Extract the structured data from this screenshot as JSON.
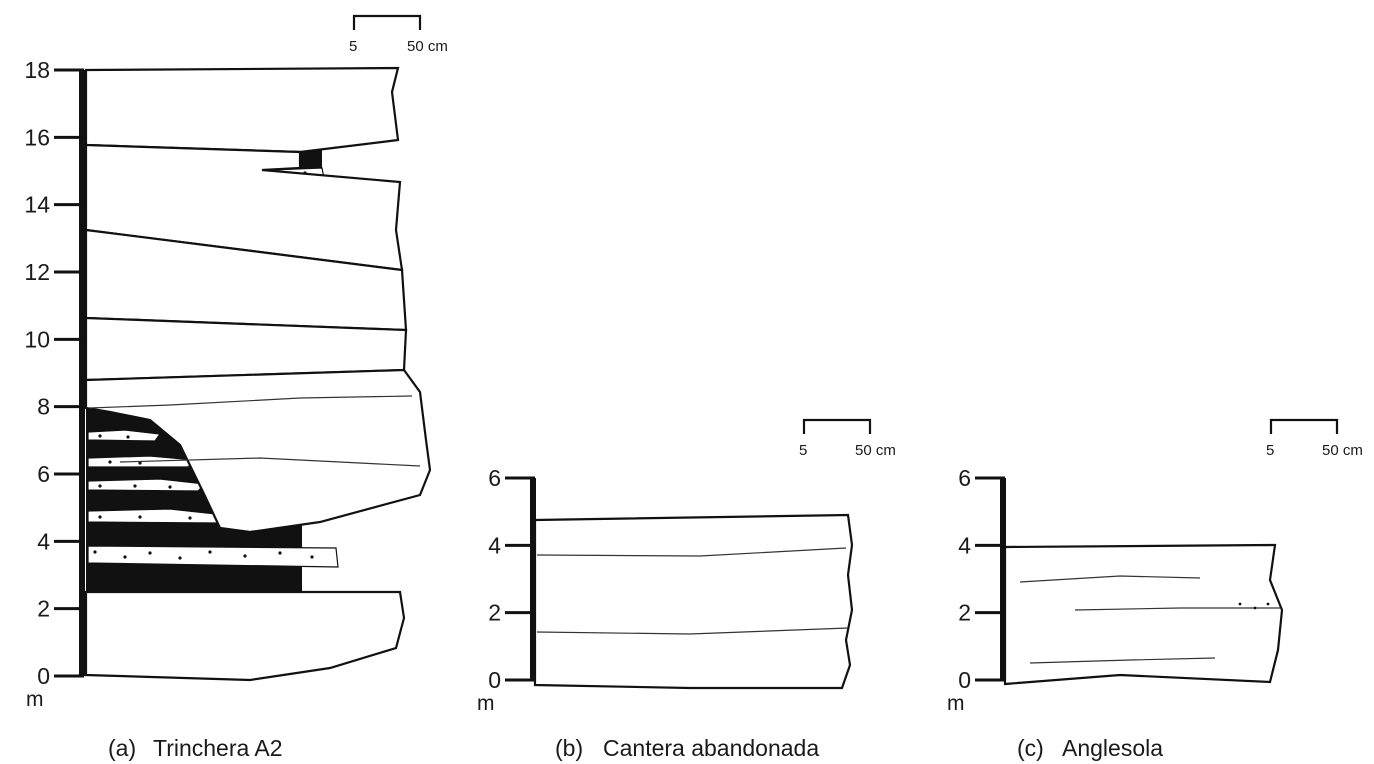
{
  "columns": [
    {
      "id": "a",
      "caption_letter": "(a)",
      "caption_name": "Trinchera A2",
      "ticks": [
        "0",
        "2",
        "4",
        "6",
        "8",
        "10",
        "12",
        "14",
        "16",
        "18"
      ],
      "unit": "m",
      "scale_bar": {
        "left": "5",
        "right": "50 cm"
      }
    },
    {
      "id": "b",
      "caption_letter": "(b)",
      "caption_name": "Cantera abandonada",
      "ticks": [
        "0",
        "2",
        "4",
        "6"
      ],
      "unit": "m",
      "scale_bar": {
        "left": "5",
        "right": "50 cm"
      }
    },
    {
      "id": "c",
      "caption_letter": "(c)",
      "caption_name": "Anglesola",
      "ticks": [
        "0",
        "2",
        "4",
        "6"
      ],
      "unit": "m",
      "scale_bar": {
        "left": "5",
        "right": "50 cm"
      }
    }
  ]
}
